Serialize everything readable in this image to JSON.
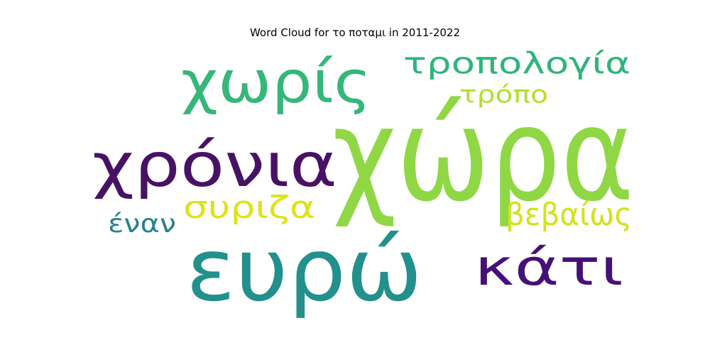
{
  "chart_data": {
    "type": "wordcloud",
    "title": "Word Cloud for το ποταμι in 2011-2022",
    "words": [
      {
        "text": "χώρα",
        "color": "#8fd744"
      },
      {
        "text": "ευρώ",
        "color": "#22908c"
      },
      {
        "text": "χρόνια",
        "color": "#471264"
      },
      {
        "text": "χωρίς",
        "color": "#35b779"
      },
      {
        "text": "κάτι",
        "color": "#451077"
      },
      {
        "text": "τροπολογία",
        "color": "#2fb47c"
      },
      {
        "text": "συριζα",
        "color": "#dde318"
      },
      {
        "text": "βεβαίως",
        "color": "#d2e21b"
      },
      {
        "text": "τρόπο",
        "color": "#b5de2b"
      },
      {
        "text": "έναν",
        "color": "#26828e"
      }
    ]
  }
}
